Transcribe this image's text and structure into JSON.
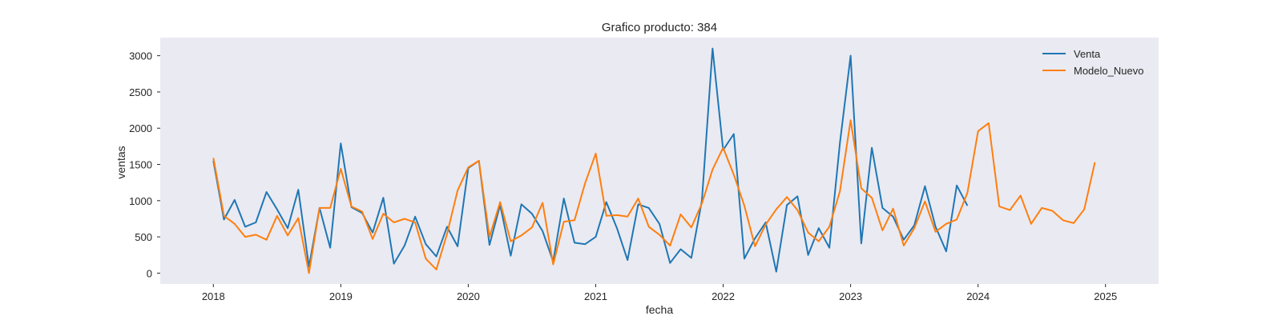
{
  "chart_data": {
    "type": "line",
    "title": "Grafico producto: 384",
    "xlabel": "fecha",
    "ylabel": "ventas",
    "x_ticks": [
      "2018",
      "2019",
      "2020",
      "2021",
      "2022",
      "2023",
      "2024",
      "2025"
    ],
    "y_ticks": [
      "0",
      "500",
      "1000",
      "1500",
      "2000",
      "2500",
      "3000"
    ],
    "xlim": [
      "2017-08",
      "2025-06"
    ],
    "ylim": [
      -150,
      3250
    ],
    "grid": false,
    "background": "#eaeaf2",
    "legend_position": "top-right",
    "series": [
      {
        "name": "Venta",
        "color": "#1f77b4",
        "points": [
          [
            "2018-01",
            1550
          ],
          [
            "2018-02",
            740
          ],
          [
            "2018-03",
            1010
          ],
          [
            "2018-04",
            640
          ],
          [
            "2018-05",
            700
          ],
          [
            "2018-06",
            1120
          ],
          [
            "2018-07",
            880
          ],
          [
            "2018-08",
            620
          ],
          [
            "2018-09",
            1150
          ],
          [
            "2018-10",
            90
          ],
          [
            "2018-11",
            900
          ],
          [
            "2018-12",
            350
          ],
          [
            "2019-01",
            1790
          ],
          [
            "2019-02",
            910
          ],
          [
            "2019-03",
            830
          ],
          [
            "2019-04",
            560
          ],
          [
            "2019-05",
            1040
          ],
          [
            "2019-06",
            130
          ],
          [
            "2019-07",
            380
          ],
          [
            "2019-08",
            780
          ],
          [
            "2019-09",
            400
          ],
          [
            "2019-10",
            230
          ],
          [
            "2019-11",
            640
          ],
          [
            "2019-12",
            370
          ],
          [
            "2020-01",
            1450
          ],
          [
            "2020-02",
            1550
          ],
          [
            "2020-03",
            390
          ],
          [
            "2020-04",
            940
          ],
          [
            "2020-05",
            240
          ],
          [
            "2020-06",
            950
          ],
          [
            "2020-07",
            820
          ],
          [
            "2020-08",
            580
          ],
          [
            "2020-09",
            160
          ],
          [
            "2020-10",
            1030
          ],
          [
            "2020-11",
            420
          ],
          [
            "2020-12",
            400
          ],
          [
            "2021-01",
            500
          ],
          [
            "2021-02",
            980
          ],
          [
            "2021-03",
            620
          ],
          [
            "2021-04",
            180
          ],
          [
            "2021-05",
            950
          ],
          [
            "2021-06",
            900
          ],
          [
            "2021-07",
            680
          ],
          [
            "2021-08",
            140
          ],
          [
            "2021-09",
            330
          ],
          [
            "2021-10",
            210
          ],
          [
            "2021-11",
            1000
          ],
          [
            "2021-12",
            3100
          ],
          [
            "2022-01",
            1700
          ],
          [
            "2022-02",
            1920
          ],
          [
            "2022-03",
            200
          ],
          [
            "2022-04",
            480
          ],
          [
            "2022-05",
            700
          ],
          [
            "2022-06",
            20
          ],
          [
            "2022-07",
            940
          ],
          [
            "2022-08",
            1060
          ],
          [
            "2022-09",
            250
          ],
          [
            "2022-10",
            620
          ],
          [
            "2022-11",
            350
          ],
          [
            "2022-12",
            1800
          ],
          [
            "2023-01",
            3000
          ],
          [
            "2023-02",
            410
          ],
          [
            "2023-03",
            1730
          ],
          [
            "2023-04",
            900
          ],
          [
            "2023-05",
            780
          ],
          [
            "2023-06",
            460
          ],
          [
            "2023-07",
            660
          ],
          [
            "2023-08",
            1200
          ],
          [
            "2023-09",
            640
          ],
          [
            "2023-10",
            300
          ],
          [
            "2023-11",
            1210
          ],
          [
            "2023-12",
            930
          ]
        ]
      },
      {
        "name": "Modelo_Nuevo",
        "color": "#ff7f0e",
        "points": [
          [
            "2018-01",
            1590
          ],
          [
            "2018-02",
            790
          ],
          [
            "2018-03",
            680
          ],
          [
            "2018-04",
            500
          ],
          [
            "2018-05",
            530
          ],
          [
            "2018-06",
            460
          ],
          [
            "2018-07",
            790
          ],
          [
            "2018-08",
            520
          ],
          [
            "2018-09",
            760
          ],
          [
            "2018-10",
            0
          ],
          [
            "2018-11",
            900
          ],
          [
            "2018-12",
            900
          ],
          [
            "2019-01",
            1440
          ],
          [
            "2019-02",
            920
          ],
          [
            "2019-03",
            850
          ],
          [
            "2019-04",
            470
          ],
          [
            "2019-05",
            820
          ],
          [
            "2019-06",
            700
          ],
          [
            "2019-07",
            750
          ],
          [
            "2019-08",
            700
          ],
          [
            "2019-09",
            200
          ],
          [
            "2019-10",
            50
          ],
          [
            "2019-11",
            540
          ],
          [
            "2019-12",
            1140
          ],
          [
            "2020-01",
            1460
          ],
          [
            "2020-02",
            1550
          ],
          [
            "2020-03",
            500
          ],
          [
            "2020-04",
            980
          ],
          [
            "2020-05",
            440
          ],
          [
            "2020-06",
            520
          ],
          [
            "2020-07",
            630
          ],
          [
            "2020-08",
            970
          ],
          [
            "2020-09",
            120
          ],
          [
            "2020-10",
            710
          ],
          [
            "2020-11",
            730
          ],
          [
            "2020-12",
            1240
          ],
          [
            "2021-01",
            1650
          ],
          [
            "2021-02",
            790
          ],
          [
            "2021-03",
            800
          ],
          [
            "2021-04",
            780
          ],
          [
            "2021-05",
            1030
          ],
          [
            "2021-06",
            640
          ],
          [
            "2021-07",
            530
          ],
          [
            "2021-08",
            380
          ],
          [
            "2021-09",
            810
          ],
          [
            "2021-10",
            630
          ],
          [
            "2021-11",
            960
          ],
          [
            "2021-12",
            1430
          ],
          [
            "2022-01",
            1730
          ],
          [
            "2022-02",
            1360
          ],
          [
            "2022-03",
            930
          ],
          [
            "2022-04",
            370
          ],
          [
            "2022-05",
            670
          ],
          [
            "2022-06",
            880
          ],
          [
            "2022-07",
            1050
          ],
          [
            "2022-08",
            870
          ],
          [
            "2022-09",
            560
          ],
          [
            "2022-10",
            440
          ],
          [
            "2022-11",
            640
          ],
          [
            "2022-12",
            1130
          ],
          [
            "2023-01",
            2110
          ],
          [
            "2023-02",
            1170
          ],
          [
            "2023-03",
            1040
          ],
          [
            "2023-04",
            590
          ],
          [
            "2023-05",
            890
          ],
          [
            "2023-06",
            380
          ],
          [
            "2023-07",
            620
          ],
          [
            "2023-08",
            990
          ],
          [
            "2023-09",
            570
          ],
          [
            "2023-10",
            680
          ],
          [
            "2023-11",
            740
          ],
          [
            "2023-12",
            1110
          ],
          [
            "2024-01",
            1960
          ],
          [
            "2024-02",
            2070
          ],
          [
            "2024-03",
            920
          ],
          [
            "2024-04",
            870
          ],
          [
            "2024-05",
            1070
          ],
          [
            "2024-06",
            680
          ],
          [
            "2024-07",
            900
          ],
          [
            "2024-08",
            860
          ],
          [
            "2024-09",
            730
          ],
          [
            "2024-10",
            690
          ],
          [
            "2024-11",
            880
          ],
          [
            "2024-12",
            1530
          ]
        ]
      }
    ]
  }
}
